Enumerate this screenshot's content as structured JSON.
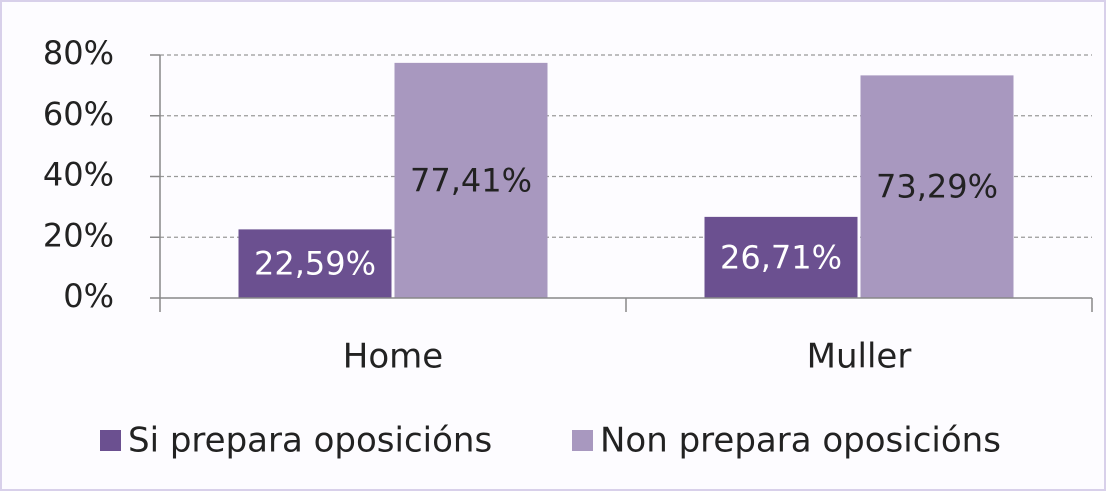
{
  "chart_data": {
    "type": "bar",
    "categories": [
      "Home",
      "Muller"
    ],
    "series": [
      {
        "name": "Si prepara oposicións",
        "color": "#6b5090",
        "values": [
          22.59,
          26.71
        ],
        "value_labels": [
          "22,59%",
          "26,71%"
        ]
      },
      {
        "name": "Non prepara oposicións",
        "color": "#a898bf",
        "values": [
          77.41,
          73.29
        ],
        "value_labels": [
          "77,41%",
          "73,29%"
        ]
      }
    ],
    "ylim": [
      0,
      80
    ],
    "yticks": [
      {
        "value": 0,
        "label": "0%"
      },
      {
        "value": 20,
        "label": "20%"
      },
      {
        "value": 40,
        "label": "40%"
      },
      {
        "value": 60,
        "label": "60%"
      },
      {
        "value": 80,
        "label": "80%"
      }
    ],
    "grid": true,
    "legend": "bottom"
  }
}
